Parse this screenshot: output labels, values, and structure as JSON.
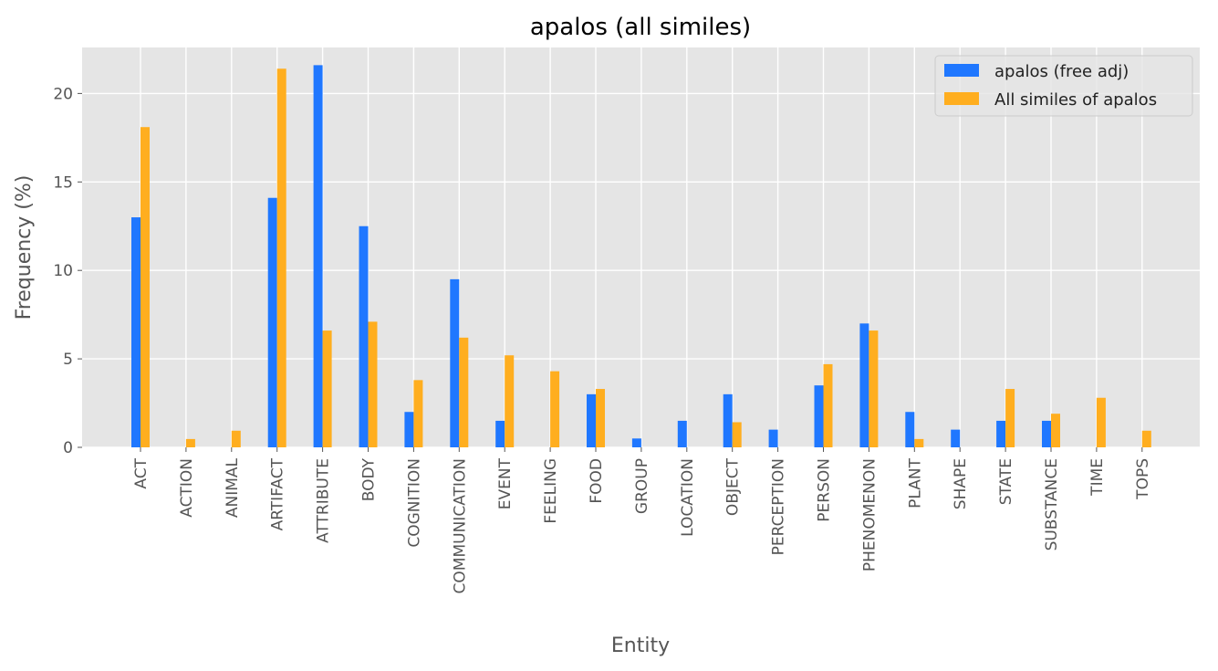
{
  "chart_data": {
    "type": "bar",
    "title": "apalos (all similes)",
    "xlabel": "Entity",
    "ylabel": "Frequency (%)",
    "ylim": [
      0,
      22.6
    ],
    "yticks": [
      0,
      5,
      10,
      15,
      20
    ],
    "grid": true,
    "legend_position": "top-right",
    "categories": [
      "ACT",
      "ACTION",
      "ANIMAL",
      "ARTIFACT",
      "ATTRIBUTE",
      "BODY",
      "COGNITION",
      "COMMUNICATION",
      "EVENT",
      "FEELING",
      "FOOD",
      "GROUP",
      "LOCATION",
      "OBJECT",
      "PERCEPTION",
      "PERSON",
      "PHENOMENON",
      "PLANT",
      "SHAPE",
      "STATE",
      "SUBSTANCE",
      "TIME",
      "TOPS"
    ],
    "series": [
      {
        "name": "apalos (free adj)",
        "color": "#1f77ff",
        "values": [
          13.0,
          0,
          0,
          14.1,
          21.6,
          12.5,
          2.0,
          9.5,
          1.5,
          0,
          3.0,
          0.5,
          1.5,
          3.0,
          1.0,
          3.5,
          7.0,
          2.0,
          1.0,
          1.5,
          1.5,
          0,
          0
        ]
      },
      {
        "name": "All similes of apalos",
        "color": "#ffae1f",
        "values": [
          18.1,
          0.47,
          0.94,
          21.4,
          6.6,
          7.1,
          3.8,
          6.2,
          5.2,
          4.3,
          3.3,
          0,
          0,
          1.42,
          0,
          4.7,
          6.6,
          0.47,
          0,
          3.3,
          1.9,
          2.8,
          0.94
        ]
      }
    ]
  }
}
